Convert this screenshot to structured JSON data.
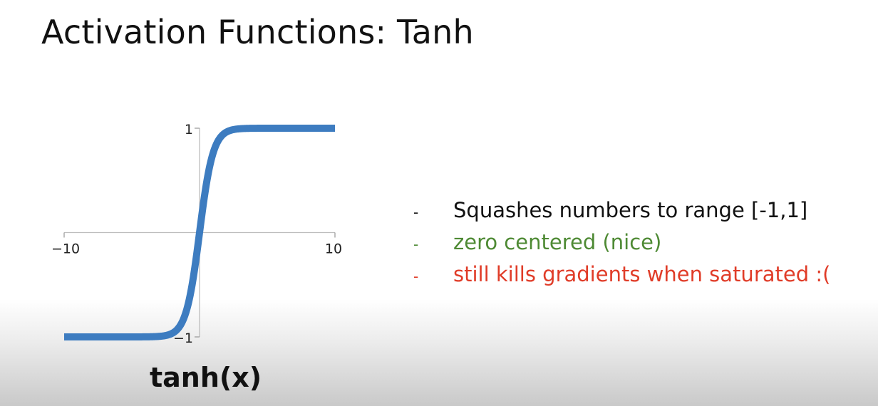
{
  "title": "Activation Functions: Tanh",
  "caption": "tanh(x)",
  "bullets": [
    {
      "text": "Squashes numbers to range [-1,1]",
      "color": "#111111"
    },
    {
      "text": "zero centered (nice)",
      "color": "#4e8a34"
    },
    {
      "text": "still kills gradients when saturated :(",
      "color": "#e03c28"
    }
  ],
  "bullet_marker": "-",
  "chart_data": {
    "type": "line",
    "function": "tanh",
    "xlim": [
      -10,
      10
    ],
    "ylim": [
      -1,
      1
    ],
    "x_tick_labels": [
      "−10",
      "10"
    ],
    "y_tick_labels": [
      "1",
      "−1"
    ],
    "series": [
      {
        "color": "#3d7cc0",
        "x": [
          -10,
          -9,
          -8,
          -7,
          -6,
          -5,
          -4,
          -3,
          -2.5,
          -2,
          -1.5,
          -1,
          -0.5,
          0,
          0.5,
          1,
          1.5,
          2,
          2.5,
          3,
          4,
          5,
          6,
          7,
          8,
          9,
          10
        ],
        "y": [
          -1,
          -1,
          -1,
          -1,
          -1,
          -0.9999,
          -0.9993,
          -0.9951,
          -0.9866,
          -0.964,
          -0.9051,
          -0.7616,
          -0.4621,
          0,
          0.4621,
          0.7616,
          0.9051,
          0.964,
          0.9866,
          0.9951,
          0.9993,
          0.9999,
          1,
          1,
          1,
          1,
          1
        ]
      }
    ]
  }
}
